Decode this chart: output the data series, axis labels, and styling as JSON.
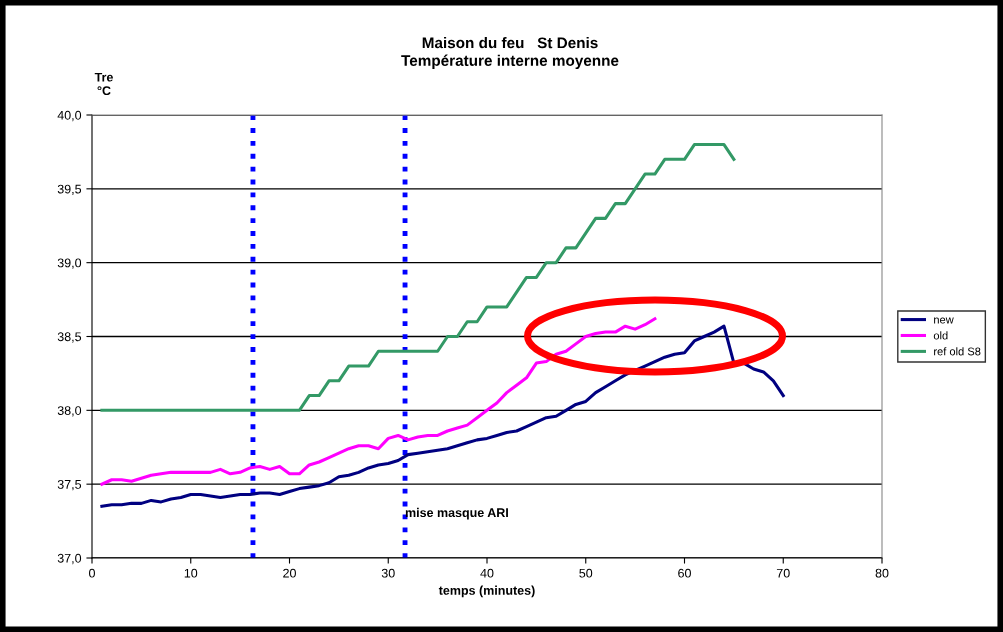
{
  "chart_data": {
    "type": "line",
    "title": "Maison du feu   St Denis\nTempérature interne moyenne",
    "xlabel": "temps (minutes)",
    "ylabel": "Tre\n°C",
    "x": [
      1,
      2,
      3,
      4,
      5,
      6,
      7,
      8,
      9,
      10,
      11,
      12,
      13,
      14,
      15,
      16,
      17,
      18,
      19,
      20,
      21,
      22,
      23,
      24,
      25,
      26,
      27,
      28,
      29,
      30,
      31,
      32,
      33,
      34,
      35,
      36,
      37,
      38,
      39,
      40,
      41,
      42,
      43,
      44,
      45,
      46,
      47,
      48,
      49,
      50,
      51,
      52,
      53,
      54,
      55,
      56,
      57,
      58,
      59,
      60,
      61,
      62,
      63,
      64,
      65,
      66,
      67,
      68,
      69,
      70
    ],
    "series": [
      {
        "name": "new",
        "color": "#000080",
        "values": [
          37.35,
          37.36,
          37.36,
          37.37,
          37.37,
          37.39,
          37.38,
          37.4,
          37.41,
          37.43,
          37.43,
          37.42,
          37.41,
          37.42,
          37.43,
          37.43,
          37.44,
          37.44,
          37.43,
          37.45,
          37.47,
          37.48,
          37.49,
          37.51,
          37.55,
          37.56,
          37.58,
          37.61,
          37.63,
          37.64,
          37.66,
          37.7,
          37.71,
          37.72,
          37.73,
          37.74,
          37.76,
          37.78,
          37.8,
          37.81,
          37.83,
          37.85,
          37.86,
          37.89,
          37.92,
          37.95,
          37.96,
          38.0,
          38.04,
          38.06,
          38.12,
          38.16,
          38.2,
          38.24,
          38.27,
          38.3,
          38.33,
          38.36,
          38.38,
          38.39,
          38.47,
          38.5,
          38.53,
          38.57,
          38.32,
          38.32,
          38.28,
          38.26,
          38.2,
          38.1
        ]
      },
      {
        "name": "old",
        "color": "#ff00ff",
        "values": [
          37.5,
          37.53,
          37.53,
          37.52,
          37.54,
          37.56,
          37.57,
          37.58,
          37.58,
          37.58,
          37.58,
          37.58,
          37.6,
          37.57,
          37.58,
          37.61,
          37.62,
          37.6,
          37.62,
          37.57,
          37.57,
          37.63,
          37.65,
          37.68,
          37.71,
          37.74,
          37.76,
          37.76,
          37.74,
          37.81,
          37.83,
          37.8,
          37.82,
          37.83,
          37.83,
          37.86,
          37.88,
          37.9,
          37.95,
          38.0,
          38.05,
          38.12,
          38.17,
          38.22,
          38.32,
          38.33,
          38.38,
          38.4,
          38.45,
          38.5,
          38.52,
          38.53,
          38.53,
          38.57,
          38.55,
          38.58,
          38.62,
          null,
          null,
          null,
          null,
          null,
          null,
          null,
          null,
          null,
          null,
          null,
          null,
          null
        ]
      },
      {
        "name": "ref old S8",
        "color": "#339966",
        "values": [
          38.0,
          38.0,
          38.0,
          38.0,
          38.0,
          38.0,
          38.0,
          38.0,
          38.0,
          38.0,
          38.0,
          38.0,
          38.0,
          38.0,
          38.0,
          38.0,
          38.0,
          38.0,
          38.0,
          38.0,
          38.0,
          38.1,
          38.1,
          38.2,
          38.2,
          38.3,
          38.3,
          38.3,
          38.4,
          38.4,
          38.4,
          38.4,
          38.4,
          38.4,
          38.4,
          38.5,
          38.5,
          38.6,
          38.6,
          38.7,
          38.7,
          38.7,
          38.8,
          38.9,
          38.9,
          39.0,
          39.0,
          39.1,
          39.1,
          39.2,
          39.3,
          39.3,
          39.4,
          39.4,
          39.5,
          39.6,
          39.6,
          39.7,
          39.7,
          39.7,
          39.8,
          39.8,
          39.8,
          39.8,
          39.7,
          null,
          null,
          null,
          null,
          null
        ]
      }
    ],
    "xlim": [
      0,
      80
    ],
    "xticks": [
      0,
      10,
      20,
      30,
      40,
      50,
      60,
      70,
      80
    ],
    "ylim": [
      37.0,
      40.0
    ],
    "yticks": [
      {
        "value": 37.0,
        "label": "37,0"
      },
      {
        "value": 37.5,
        "label": "37,5"
      },
      {
        "value": 38.0,
        "label": "38,0"
      },
      {
        "value": 38.5,
        "label": "38,5"
      },
      {
        "value": 39.0,
        "label": "39,0"
      },
      {
        "value": 39.5,
        "label": "39,5"
      },
      {
        "value": 40.0,
        "label": "40,0"
      }
    ],
    "ref_lines": [
      {
        "axis": "x",
        "value": 16.3,
        "color": "#0000ff",
        "line_style": "dotted"
      },
      {
        "axis": "x",
        "value": 31.7,
        "label": "mise masque ARI",
        "color": "#0000ff",
        "line_style": "dotted"
      }
    ],
    "grid": "y",
    "legend": "right",
    "marker": "none",
    "line_style": "solid"
  }
}
